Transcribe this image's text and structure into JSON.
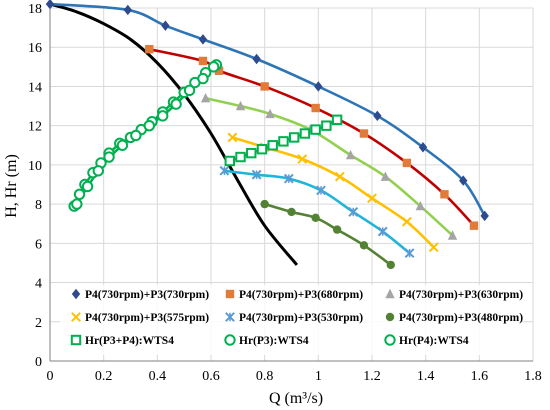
{
  "chart_data": {
    "type": "scatter",
    "xlabel": "Q (m³/s)",
    "ylabel": "H, Hr (m)",
    "xlim": [
      0,
      1.8
    ],
    "ylim": [
      0,
      18
    ],
    "x_ticks": [
      "0",
      "0.2",
      "0.4",
      "0.6",
      "0.8",
      "1",
      "1.2",
      "1.4",
      "1.6",
      "1.8"
    ],
    "y_ticks": [
      "0",
      "2",
      "4",
      "6",
      "8",
      "10",
      "12",
      "14",
      "16",
      "18"
    ],
    "grid": "vertical-and-horizontal",
    "legend_position": "bottom-inside",
    "series": [
      {
        "name": "P4(730rpm)+P3(730rpm)",
        "marker": "diamond",
        "color": "#2E75B6",
        "line_color": "#2E75B6",
        "x": [
          0.0,
          0.29,
          0.43,
          0.57,
          0.77,
          1.0,
          1.22,
          1.39,
          1.54,
          1.62
        ],
        "y": [
          18.2,
          17.9,
          17.1,
          16.4,
          15.4,
          14.0,
          12.5,
          10.9,
          9.2,
          7.4
        ]
      },
      {
        "name": "P4(730rpm)+P3(680rpm)",
        "marker": "square",
        "color": "#E07B39",
        "line_color": "#C00000",
        "x": [
          0.37,
          0.57,
          0.63,
          0.8,
          0.99,
          1.17,
          1.33,
          1.47,
          1.58
        ],
        "y": [
          15.9,
          15.3,
          14.8,
          14.0,
          12.9,
          11.6,
          10.1,
          8.5,
          6.9
        ]
      },
      {
        "name": "P4(730rpm)+P3(630rpm)",
        "marker": "triangle",
        "color": "#A5A5A5",
        "line_color": "#92D050",
        "x": [
          0.58,
          0.71,
          0.82,
          0.97,
          1.12,
          1.25,
          1.38,
          1.5
        ],
        "y": [
          13.4,
          13.0,
          12.6,
          11.8,
          10.5,
          9.4,
          7.9,
          6.4
        ]
      },
      {
        "name": "P4(730rpm)+P3(575rpm)",
        "marker": "x",
        "color": "#FFC000",
        "line_color": "#FFC000",
        "x": [
          0.68,
          0.8,
          0.94,
          1.08,
          1.2,
          1.33,
          1.43
        ],
        "y": [
          11.4,
          10.9,
          10.3,
          9.4,
          8.3,
          7.1,
          5.8
        ]
      },
      {
        "name": "P4(730rpm)+P3(530rpm)",
        "marker": "star",
        "color": "#5B9BD5",
        "line_color": "#1FB5D8",
        "x": [
          0.65,
          0.77,
          0.89,
          1.01,
          1.13,
          1.24,
          1.34
        ],
        "y": [
          9.7,
          9.5,
          9.3,
          8.7,
          7.6,
          6.6,
          5.5
        ]
      },
      {
        "name": "P4(730rpm)+P3(480rpm)",
        "marker": "circle",
        "color": "#548235",
        "line_color": "#548235",
        "x": [
          0.8,
          0.9,
          0.99,
          1.07,
          1.17,
          1.27
        ],
        "y": [
          8.0,
          7.6,
          7.3,
          6.7,
          5.9,
          4.9
        ]
      },
      {
        "name": "Hr(P3+P4):WTS4",
        "marker": "open-square",
        "color": "#00B050",
        "x": [
          0.67,
          0.71,
          0.75,
          0.79,
          0.83,
          0.87,
          0.91,
          0.95,
          0.99,
          1.03,
          1.07
        ],
        "y": [
          10.2,
          10.4,
          10.6,
          10.8,
          11.0,
          11.2,
          11.4,
          11.6,
          11.8,
          12.0,
          12.3
        ]
      },
      {
        "name": "Hr(P3):WTS4",
        "marker": "open-circle",
        "color": "#00B050",
        "x": [
          0.09,
          0.11,
          0.13,
          0.16,
          0.19,
          0.22,
          0.26,
          0.3,
          0.34,
          0.38,
          0.42,
          0.46,
          0.5,
          0.54,
          0.58,
          0.62
        ],
        "y": [
          7.9,
          8.5,
          9.0,
          9.6,
          10.1,
          10.6,
          11.1,
          11.4,
          11.8,
          12.2,
          12.7,
          13.2,
          13.7,
          14.2,
          14.7,
          15.1
        ]
      },
      {
        "name": "Hr(P4):WTS4",
        "marker": "open-circle",
        "color": "#00B050",
        "x": [
          0.1,
          0.14,
          0.18,
          0.22,
          0.27,
          0.32,
          0.37,
          0.42,
          0.47,
          0.52,
          0.57,
          0.61
        ],
        "y": [
          8.0,
          8.9,
          9.7,
          10.4,
          11.0,
          11.5,
          12.0,
          12.5,
          13.1,
          13.8,
          14.4,
          15.0
        ]
      }
    ],
    "system_curve": {
      "color": "#000000",
      "x": [
        0.0,
        0.1,
        0.2,
        0.3,
        0.4,
        0.5,
        0.6,
        0.7,
        0.8,
        0.92
      ],
      "y": [
        18.2,
        17.8,
        17.2,
        16.4,
        15.2,
        13.6,
        11.6,
        9.2,
        6.9,
        4.9
      ]
    }
  }
}
